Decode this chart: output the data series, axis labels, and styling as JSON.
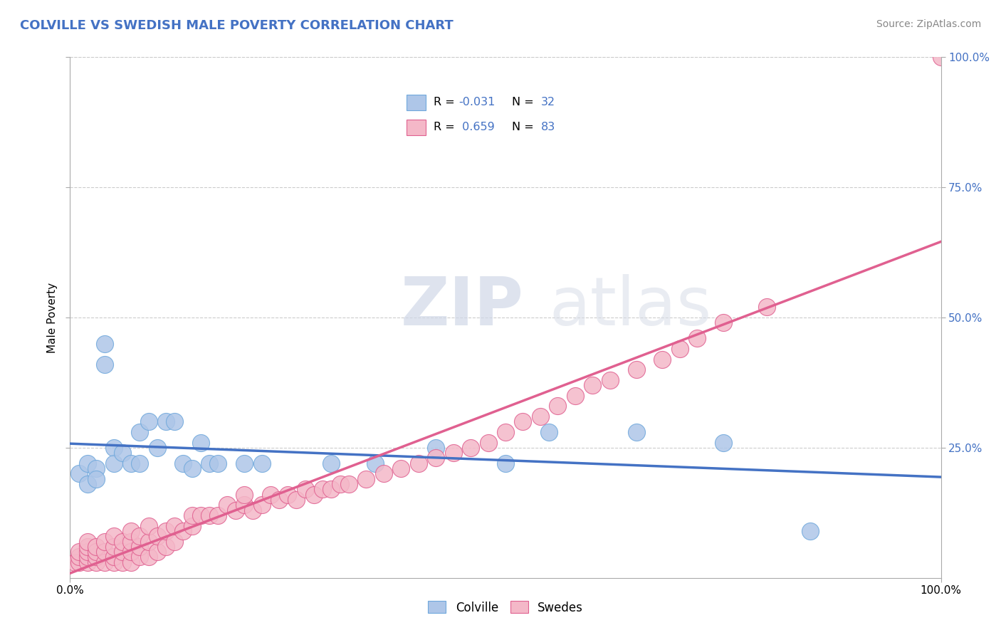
{
  "title": "COLVILLE VS SWEDISH MALE POVERTY CORRELATION CHART",
  "title_color": "#4472c4",
  "ylabel": "Male Poverty",
  "source_text": "Source: ZipAtlas.com",
  "x_range": [
    0,
    1
  ],
  "y_range": [
    0,
    1
  ],
  "legend_labels": [
    "Colville",
    "Swedes"
  ],
  "legend_R": [
    -0.031,
    0.659
  ],
  "legend_N": [
    32,
    83
  ],
  "colville_color": "#aec6e8",
  "colville_edge": "#6fa8dc",
  "swedes_color": "#f4b8c8",
  "swedes_edge": "#e06090",
  "colville_line_color": "#4472c4",
  "swedes_line_color": "#e06090",
  "background_color": "#ffffff",
  "grid_color": "#cccccc",
  "watermark_zip": "ZIP",
  "watermark_atlas": "atlas",
  "colville_x": [
    0.01,
    0.02,
    0.02,
    0.03,
    0.03,
    0.04,
    0.04,
    0.05,
    0.05,
    0.06,
    0.07,
    0.08,
    0.08,
    0.09,
    0.1,
    0.11,
    0.12,
    0.13,
    0.14,
    0.15,
    0.16,
    0.17,
    0.2,
    0.22,
    0.3,
    0.35,
    0.42,
    0.5,
    0.55,
    0.65,
    0.75,
    0.85
  ],
  "colville_y": [
    0.2,
    0.22,
    0.18,
    0.21,
    0.19,
    0.45,
    0.41,
    0.25,
    0.22,
    0.24,
    0.22,
    0.28,
    0.22,
    0.3,
    0.25,
    0.3,
    0.3,
    0.22,
    0.21,
    0.26,
    0.22,
    0.22,
    0.22,
    0.22,
    0.22,
    0.22,
    0.25,
    0.22,
    0.28,
    0.28,
    0.26,
    0.09
  ],
  "swedes_x": [
    0.005,
    0.01,
    0.01,
    0.01,
    0.02,
    0.02,
    0.02,
    0.02,
    0.02,
    0.03,
    0.03,
    0.03,
    0.03,
    0.04,
    0.04,
    0.04,
    0.05,
    0.05,
    0.05,
    0.05,
    0.06,
    0.06,
    0.06,
    0.07,
    0.07,
    0.07,
    0.07,
    0.08,
    0.08,
    0.08,
    0.09,
    0.09,
    0.09,
    0.1,
    0.1,
    0.11,
    0.11,
    0.12,
    0.12,
    0.13,
    0.14,
    0.14,
    0.15,
    0.16,
    0.17,
    0.18,
    0.19,
    0.2,
    0.2,
    0.21,
    0.22,
    0.23,
    0.24,
    0.25,
    0.26,
    0.27,
    0.28,
    0.29,
    0.3,
    0.31,
    0.32,
    0.34,
    0.36,
    0.38,
    0.4,
    0.42,
    0.44,
    0.46,
    0.48,
    0.5,
    0.52,
    0.54,
    0.56,
    0.58,
    0.6,
    0.62,
    0.65,
    0.68,
    0.7,
    0.72,
    0.75,
    0.8,
    1.0
  ],
  "swedes_y": [
    0.03,
    0.03,
    0.04,
    0.05,
    0.03,
    0.04,
    0.05,
    0.06,
    0.07,
    0.03,
    0.04,
    0.05,
    0.06,
    0.03,
    0.05,
    0.07,
    0.03,
    0.04,
    0.06,
    0.08,
    0.03,
    0.05,
    0.07,
    0.03,
    0.05,
    0.07,
    0.09,
    0.04,
    0.06,
    0.08,
    0.04,
    0.07,
    0.1,
    0.05,
    0.08,
    0.06,
    0.09,
    0.07,
    0.1,
    0.09,
    0.1,
    0.12,
    0.12,
    0.12,
    0.12,
    0.14,
    0.13,
    0.14,
    0.16,
    0.13,
    0.14,
    0.16,
    0.15,
    0.16,
    0.15,
    0.17,
    0.16,
    0.17,
    0.17,
    0.18,
    0.18,
    0.19,
    0.2,
    0.21,
    0.22,
    0.23,
    0.24,
    0.25,
    0.26,
    0.28,
    0.3,
    0.31,
    0.33,
    0.35,
    0.37,
    0.38,
    0.4,
    0.42,
    0.44,
    0.46,
    0.49,
    0.52,
    1.0
  ]
}
